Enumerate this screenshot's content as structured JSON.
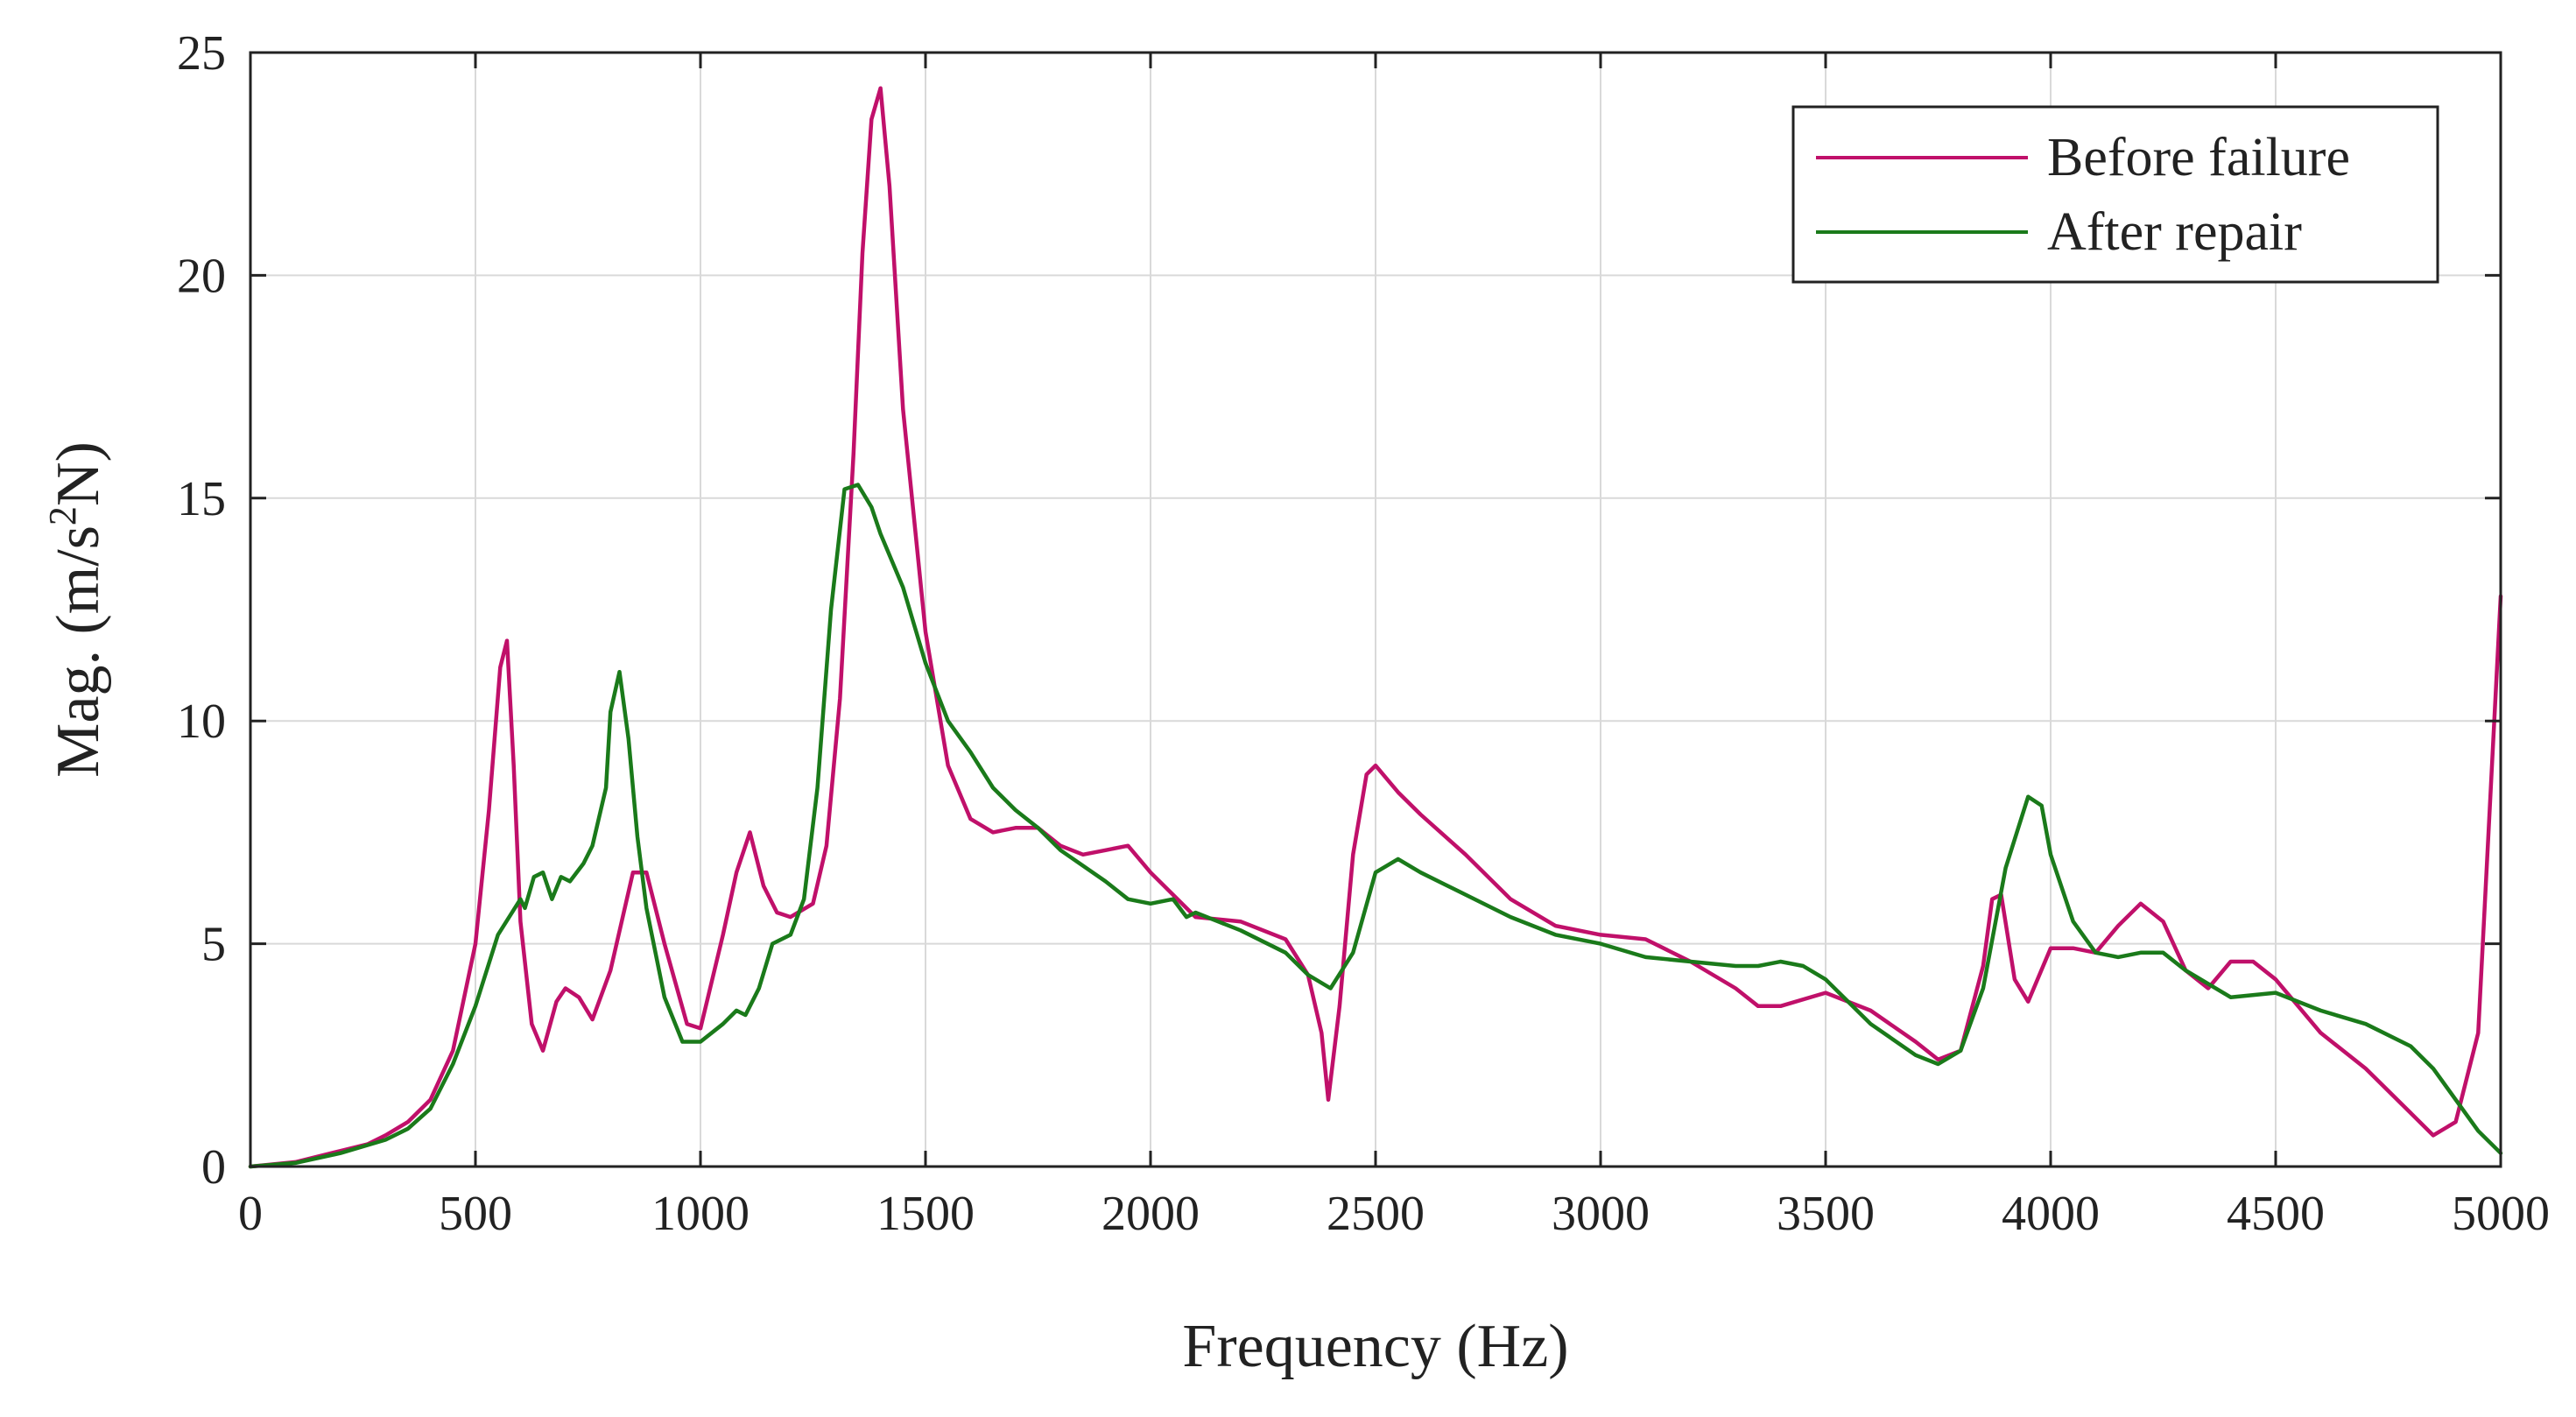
{
  "chart_data": {
    "type": "line",
    "title": "",
    "xlabel": "Frequency (Hz)",
    "ylabel_parts": {
      "main": "Mag. (m/s",
      "superscript": "2",
      "tail": "N)"
    },
    "xlim": [
      0,
      5000
    ],
    "ylim": [
      0,
      25
    ],
    "grid": true,
    "legend_position": "top-right",
    "xticks": [
      0,
      500,
      1000,
      1500,
      2000,
      2500,
      3000,
      3500,
      4000,
      4500,
      5000
    ],
    "xtick_labels": [
      "0",
      "500",
      "1000",
      "1500",
      "2000",
      "2500",
      "3000",
      "3500",
      "4000",
      "4500",
      "5000"
    ],
    "yticks": [
      0,
      5,
      10,
      15,
      20,
      25
    ],
    "ytick_labels": [
      "0",
      "5",
      "10",
      "15",
      "20",
      "25"
    ],
    "series": [
      {
        "name": "Before failure",
        "color": "#c0106a",
        "x": [
          0,
          100,
          200,
          260,
          300,
          350,
          400,
          450,
          500,
          530,
          555,
          570,
          585,
          600,
          625,
          650,
          680,
          700,
          730,
          760,
          800,
          850,
          880,
          920,
          970,
          1000,
          1050,
          1080,
          1110,
          1140,
          1170,
          1200,
          1250,
          1280,
          1310,
          1340,
          1360,
          1380,
          1400,
          1420,
          1450,
          1500,
          1550,
          1600,
          1650,
          1700,
          1750,
          1800,
          1850,
          1900,
          1950,
          2000,
          2100,
          2200,
          2300,
          2350,
          2380,
          2395,
          2420,
          2450,
          2480,
          2500,
          2550,
          2600,
          2700,
          2800,
          2900,
          3000,
          3100,
          3200,
          3300,
          3350,
          3400,
          3500,
          3600,
          3700,
          3750,
          3800,
          3850,
          3870,
          3890,
          3920,
          3950,
          4000,
          4050,
          4100,
          4150,
          4200,
          4250,
          4300,
          4350,
          4400,
          4450,
          4500,
          4600,
          4700,
          4800,
          4850,
          4900,
          4950,
          5000
        ],
        "y": [
          0,
          0.1,
          0.35,
          0.5,
          0.7,
          1.0,
          1.5,
          2.6,
          5.0,
          8.0,
          11.2,
          11.8,
          9.0,
          5.5,
          3.2,
          2.6,
          3.7,
          4.0,
          3.8,
          3.3,
          4.4,
          6.6,
          6.6,
          5.0,
          3.2,
          3.1,
          5.2,
          6.6,
          7.5,
          6.3,
          5.7,
          5.6,
          5.9,
          7.2,
          10.5,
          16.0,
          20.5,
          23.5,
          24.2,
          22.0,
          17.0,
          12.0,
          9.0,
          7.8,
          7.5,
          7.6,
          7.6,
          7.2,
          7.0,
          7.1,
          7.2,
          6.6,
          5.6,
          5.5,
          5.1,
          4.3,
          3.0,
          1.5,
          3.6,
          7.0,
          8.8,
          9.0,
          8.4,
          7.9,
          7.0,
          6.0,
          5.4,
          5.2,
          5.1,
          4.6,
          4.0,
          3.6,
          3.6,
          3.9,
          3.5,
          2.8,
          2.4,
          2.6,
          4.5,
          6.0,
          6.1,
          4.2,
          3.7,
          4.9,
          4.9,
          4.8,
          5.4,
          5.9,
          5.5,
          4.4,
          4.0,
          4.6,
          4.6,
          4.2,
          3.0,
          2.2,
          1.2,
          0.7,
          1.0,
          3.0,
          12.8
        ]
      },
      {
        "name": "After repair",
        "color": "#1a7a1a",
        "x": [
          0,
          100,
          200,
          250,
          300,
          350,
          400,
          450,
          500,
          550,
          600,
          610,
          630,
          650,
          670,
          690,
          710,
          740,
          760,
          790,
          800,
          820,
          840,
          860,
          880,
          920,
          960,
          1000,
          1050,
          1080,
          1100,
          1130,
          1160,
          1200,
          1230,
          1260,
          1290,
          1320,
          1350,
          1380,
          1400,
          1450,
          1500,
          1550,
          1600,
          1650,
          1700,
          1750,
          1800,
          1900,
          1950,
          2000,
          2050,
          2080,
          2100,
          2150,
          2200,
          2300,
          2350,
          2400,
          2450,
          2500,
          2550,
          2600,
          2700,
          2800,
          2900,
          3000,
          3100,
          3200,
          3300,
          3350,
          3400,
          3450,
          3500,
          3600,
          3700,
          3750,
          3800,
          3850,
          3900,
          3950,
          3980,
          4000,
          4050,
          4100,
          4150,
          4200,
          4250,
          4300,
          4400,
          4500,
          4600,
          4700,
          4800,
          4850,
          4900,
          4950,
          5000
        ],
        "y": [
          0,
          0.08,
          0.3,
          0.45,
          0.6,
          0.85,
          1.3,
          2.3,
          3.6,
          5.2,
          6.0,
          5.8,
          6.5,
          6.6,
          6.0,
          6.5,
          6.4,
          6.8,
          7.2,
          8.5,
          10.2,
          11.1,
          9.6,
          7.4,
          5.8,
          3.8,
          2.8,
          2.8,
          3.2,
          3.5,
          3.4,
          4.0,
          5.0,
          5.2,
          6.0,
          8.5,
          12.5,
          15.2,
          15.3,
          14.8,
          14.2,
          13.0,
          11.3,
          10.0,
          9.3,
          8.5,
          8.0,
          7.6,
          7.1,
          6.4,
          6.0,
          5.9,
          6.0,
          5.6,
          5.7,
          5.5,
          5.3,
          4.8,
          4.3,
          4.0,
          4.8,
          6.6,
          6.9,
          6.6,
          6.1,
          5.6,
          5.2,
          5.0,
          4.7,
          4.6,
          4.5,
          4.5,
          4.6,
          4.5,
          4.2,
          3.2,
          2.5,
          2.3,
          2.6,
          4.0,
          6.7,
          8.3,
          8.1,
          7.0,
          5.5,
          4.8,
          4.7,
          4.8,
          4.8,
          4.4,
          3.8,
          3.9,
          3.5,
          3.2,
          2.7,
          2.2,
          1.5,
          0.8,
          0.3
        ]
      }
    ]
  }
}
